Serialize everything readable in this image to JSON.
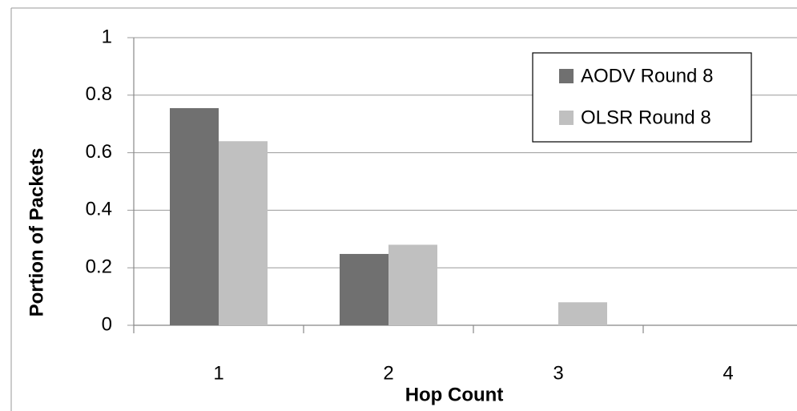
{
  "chart_data": {
    "type": "bar",
    "x_label": "Hop Count",
    "y_label": "Portion of Packets",
    "categories": [
      "1",
      "2",
      "3",
      "4"
    ],
    "series": [
      {
        "name": "AODV Round 8",
        "color": "#707070",
        "values": [
          0.755,
          0.248,
          0,
          0
        ]
      },
      {
        "name": "OLSR Round 8",
        "color": "#c0c0c0",
        "values": [
          0.64,
          0.28,
          0.08,
          0
        ]
      }
    ],
    "ylim": [
      0,
      1
    ],
    "yticks": [
      0,
      0.2,
      0.4,
      0.6,
      0.8,
      1
    ],
    "grid": true,
    "legend": "top-right"
  }
}
